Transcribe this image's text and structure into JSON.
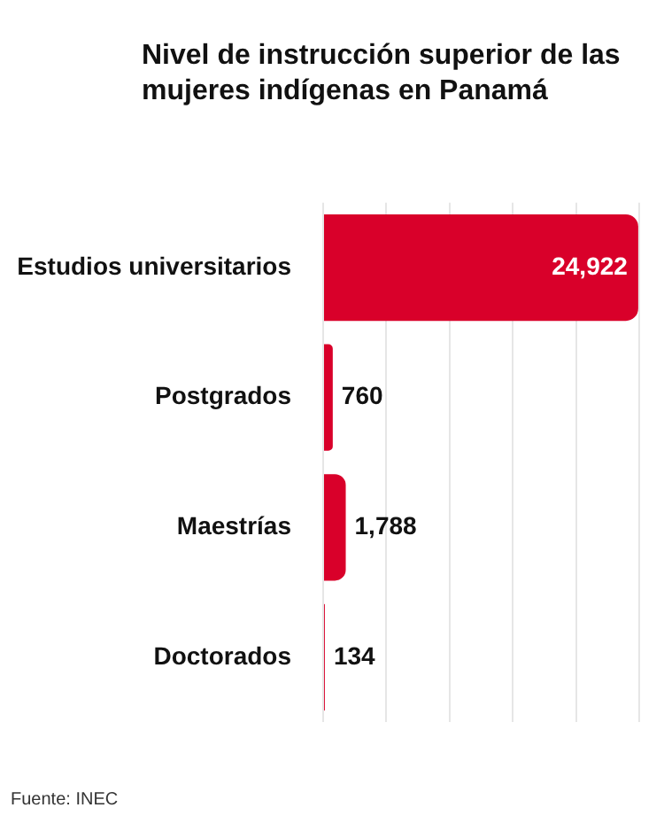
{
  "chart_data": {
    "type": "bar",
    "orientation": "horizontal",
    "title": "Nivel de instrucción superior de las mujeres indígenas en Panamá",
    "categories": [
      "Estudios universitarios",
      "Postgrados",
      "Maestrías",
      "Doctorados"
    ],
    "values": [
      24922,
      760,
      1788,
      134
    ],
    "color": "#d9002a",
    "value_labels": [
      "24,922",
      "760",
      "1,788",
      "134"
    ],
    "xlim": [
      0,
      25000
    ],
    "xticks": [
      {
        "value": 0,
        "label": null
      },
      {
        "value": 5000,
        "label": null
      },
      {
        "value": 10000,
        "label": null
      },
      {
        "value": 15000,
        "label": null
      },
      {
        "value": 20000,
        "label": null
      },
      {
        "value": 25000,
        "label": null
      }
    ],
    "grid": "x",
    "tick_labels": "y",
    "legend": false,
    "annotations": [
      "Fuente: INEC"
    ]
  }
}
